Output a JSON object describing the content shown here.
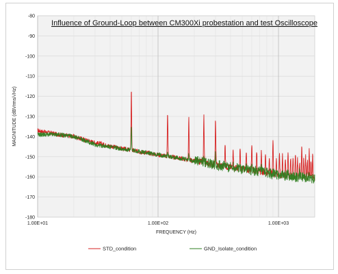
{
  "chart_data": {
    "type": "line",
    "title": "Influence of Ground-Loop between CM300Xi probestation and test Oscilloscope",
    "xlabel": "FREQUENCY (Hz)",
    "ylabel": "MAGNITUDE (dBVrms/√Hz)",
    "x_scale": "log",
    "xlim": [
      10,
      2000
    ],
    "ylim": [
      -180,
      -80
    ],
    "x_ticks": [
      10,
      100,
      1000
    ],
    "x_tick_labels": [
      "1.00E+01",
      "1.00E+02",
      "1.00E+03"
    ],
    "y_ticks": [
      -80,
      -90,
      -100,
      -110,
      -120,
      -130,
      -140,
      -150,
      -160,
      -170,
      -180
    ],
    "y_tick_labels": [
      "-80",
      "-90",
      "-100",
      "-110",
      "-120",
      "-130",
      "-140",
      "-150",
      "-160",
      "-170",
      "-180"
    ],
    "grid": true,
    "legend_position": "bottom",
    "series": [
      {
        "name": "STD_condition",
        "color": "#d62020",
        "baseline": [
          [
            10,
            -137
          ],
          [
            15,
            -139
          ],
          [
            20,
            -140
          ],
          [
            30,
            -143
          ],
          [
            50,
            -146
          ],
          [
            80,
            -148
          ],
          [
            100,
            -149
          ],
          [
            200,
            -152
          ],
          [
            300,
            -154
          ],
          [
            500,
            -156
          ],
          [
            800,
            -158
          ],
          [
            1000,
            -159
          ],
          [
            2000,
            -161
          ]
        ],
        "peaks": [
          [
            60,
            -116
          ],
          [
            120,
            -128
          ],
          [
            180,
            -131
          ],
          [
            240,
            -130
          ],
          [
            300,
            -131
          ],
          [
            360,
            -143
          ],
          [
            420,
            -145
          ],
          [
            480,
            -146
          ],
          [
            540,
            -148
          ],
          [
            600,
            -143
          ],
          [
            660,
            -147
          ],
          [
            720,
            -148
          ],
          [
            780,
            -148
          ],
          [
            840,
            -150
          ],
          [
            900,
            -141
          ],
          [
            960,
            -150
          ],
          [
            1020,
            -149
          ],
          [
            1080,
            -149
          ],
          [
            1140,
            -150
          ],
          [
            1200,
            -148
          ],
          [
            1260,
            -150
          ],
          [
            1320,
            -150
          ],
          [
            1380,
            -148
          ],
          [
            1440,
            -151
          ],
          [
            1500,
            -152
          ],
          [
            1560,
            -146
          ],
          [
            1620,
            -150
          ],
          [
            1680,
            -150
          ],
          [
            1740,
            -152
          ],
          [
            1800,
            -147
          ],
          [
            1860,
            -151
          ],
          [
            1920,
            -149
          ]
        ]
      },
      {
        "name": "GND_Isolate_condition",
        "color": "#2e7d1f",
        "baseline": [
          [
            10,
            -139
          ],
          [
            15,
            -139
          ],
          [
            20,
            -140
          ],
          [
            30,
            -144
          ],
          [
            50,
            -146
          ],
          [
            80,
            -148
          ],
          [
            100,
            -149
          ],
          [
            200,
            -152
          ],
          [
            300,
            -154
          ],
          [
            500,
            -156
          ],
          [
            800,
            -158
          ],
          [
            1000,
            -159
          ],
          [
            2000,
            -161
          ]
        ],
        "peaks": [
          [
            60,
            -135
          ],
          [
            120,
            -148
          ],
          [
            180,
            -149
          ],
          [
            240,
            -150
          ],
          [
            300,
            -148
          ],
          [
            360,
            -154
          ],
          [
            420,
            -154
          ],
          [
            480,
            -155
          ],
          [
            540,
            -155
          ],
          [
            600,
            -155
          ],
          [
            720,
            -156
          ],
          [
            900,
            -156
          ],
          [
            1200,
            -157
          ],
          [
            1500,
            -158
          ],
          [
            1800,
            -158
          ]
        ]
      }
    ]
  }
}
